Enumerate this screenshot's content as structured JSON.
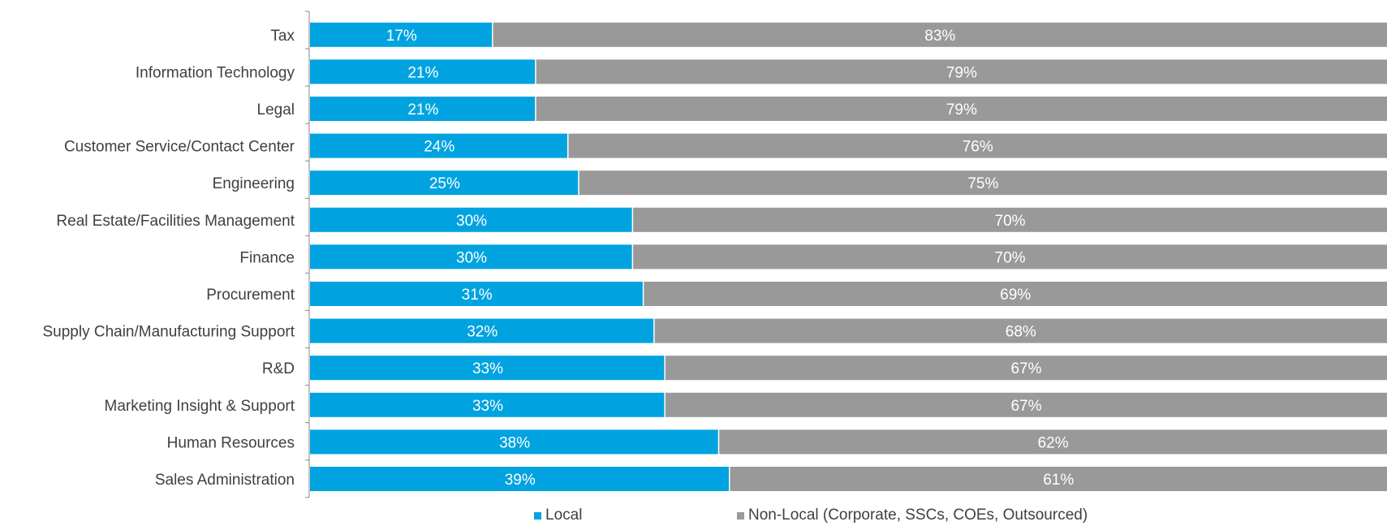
{
  "chart_data": {
    "type": "bar",
    "orientation": "horizontal",
    "stacked": true,
    "percent_stacked": true,
    "categories": [
      "Tax",
      "Information Technology",
      "Legal",
      "Customer Service/Contact Center",
      "Engineering",
      "Real Estate/Facilities Management",
      "Finance",
      "Procurement",
      "Supply Chain/Manufacturing Support",
      "R&D",
      "Marketing Insight & Support",
      "Human Resources",
      "Sales Administration"
    ],
    "series": [
      {
        "name": "Local",
        "color": "#00a3e0",
        "values": [
          17,
          21,
          21,
          24,
          25,
          30,
          30,
          31,
          32,
          33,
          33,
          38,
          39
        ],
        "labels": [
          "17%",
          "21%",
          "21%",
          "24%",
          "25%",
          "30%",
          "30%",
          "31%",
          "32%",
          "33%",
          "33%",
          "38%",
          "39%"
        ]
      },
      {
        "name": "Non-Local (Corporate, SSCs, COEs, Outsourced)",
        "color": "#999999",
        "values": [
          83,
          79,
          79,
          76,
          75,
          70,
          70,
          69,
          68,
          67,
          67,
          62,
          61
        ],
        "labels": [
          "83%",
          "79%",
          "79%",
          "76%",
          "75%",
          "70%",
          "70%",
          "69%",
          "68%",
          "67%",
          "67%",
          "62%",
          "61%"
        ]
      }
    ],
    "xlim": [
      0,
      100
    ],
    "grid": false,
    "legend_position": "bottom"
  }
}
